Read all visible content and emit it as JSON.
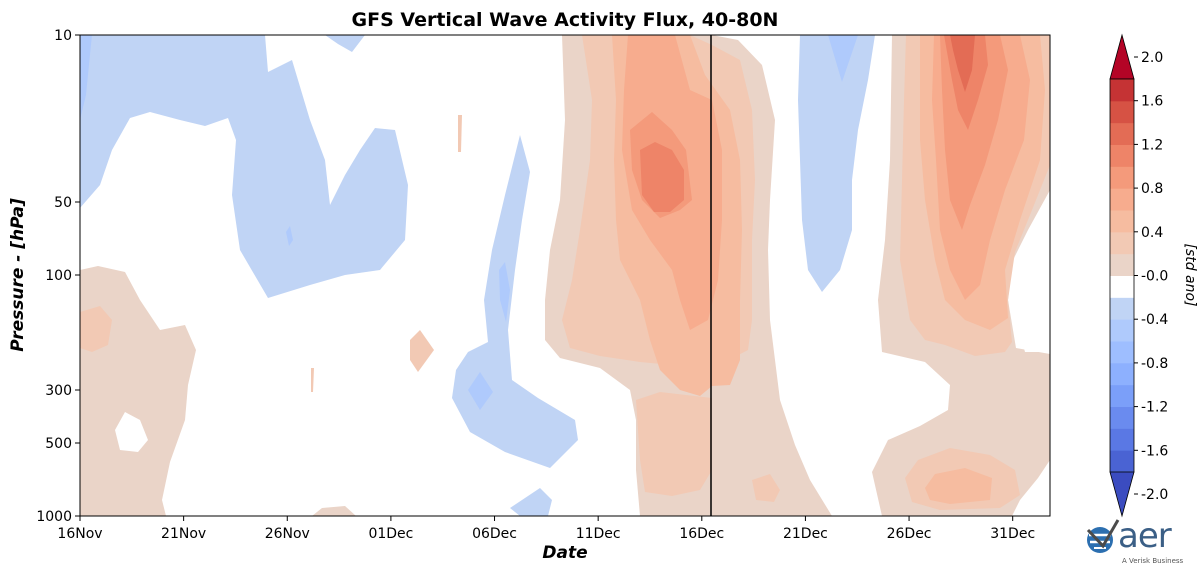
{
  "chart_data": {
    "type": "contourf",
    "title": "GFS Vertical Wave Activity Flux, 40-80N",
    "xlabel": "Date",
    "ylabel": "Pressure - [hPa]",
    "x_ticks": [
      "16Nov",
      "21Nov",
      "26Nov",
      "01Dec",
      "06Dec",
      "11Dec",
      "16Dec",
      "21Dec",
      "26Dec",
      "31Dec"
    ],
    "y_ticks": [
      "10",
      "50",
      "100",
      "300",
      "500",
      "1000"
    ],
    "colorbar": {
      "label": "[std ano]",
      "ticks": [
        "2.0",
        "1.6",
        "1.2",
        "0.8",
        "0.4",
        "-0.0",
        "-0.4",
        "-0.8",
        "-1.2",
        "-1.6",
        "-2.0"
      ],
      "levels": [
        -2.0,
        -1.8,
        -1.6,
        -1.4,
        -1.2,
        -1.0,
        -0.8,
        -0.6,
        -0.4,
        -0.2,
        0.2,
        0.4,
        0.6,
        0.8,
        1.0,
        1.2,
        1.4,
        1.6,
        1.8,
        2.0
      ],
      "colors": [
        "#3b4cc0",
        "#4a63d3",
        "#5a78e4",
        "#6a8bef",
        "#7b9ff9",
        "#8db0fe",
        "#9ebeff",
        "#afcafc",
        "#c0d4f5",
        "#ffffff",
        "#ead4c8",
        "#f2c9b4",
        "#f6bca0",
        "#f7ac8e",
        "#f49a7b",
        "#ee8468",
        "#e36c55",
        "#d65244",
        "#c53334",
        "#b40426"
      ]
    },
    "current_date_marker": "16Dec",
    "regions": [
      {
        "name": "neg-upper-left",
        "level": -0.4
      },
      {
        "name": "neg-upper-middle",
        "level": -0.4
      },
      {
        "name": "neg-lower-middle",
        "level": -0.4
      },
      {
        "name": "neg-upper-right",
        "level": -0.4
      },
      {
        "name": "pos-lower-left",
        "level": 0.4
      },
      {
        "name": "pos-main-event",
        "level": 1.2
      },
      {
        "name": "pos-late-event",
        "level": 1.4
      },
      {
        "name": "pos-surface-late",
        "level": 0.8
      }
    ]
  },
  "logo": {
    "text": "aer",
    "subtext": "A Verisk Business"
  }
}
